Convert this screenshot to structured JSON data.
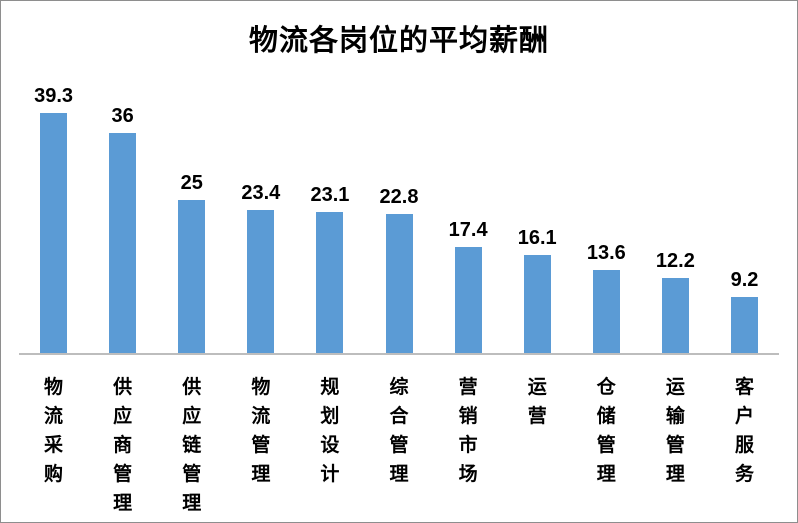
{
  "window": {
    "background": "#ffffff",
    "border_color": "#8e8e8e"
  },
  "chart_data": {
    "type": "bar",
    "title": "物流各岗位的平均薪酬",
    "categories": [
      "物流采购",
      "供应商管理",
      "供应链管理",
      "物流管理",
      "规划设计",
      "综合管理",
      "营销市场",
      "运营",
      "仓储管理",
      "运输管理",
      "客户服务"
    ],
    "values": [
      39.3,
      36,
      25,
      23.4,
      23.1,
      22.8,
      17.4,
      16.1,
      13.6,
      12.2,
      9.2
    ],
    "value_labels": [
      "39.3",
      "36",
      "25",
      "23.4",
      "23.1",
      "22.8",
      "17.4",
      "16.1",
      "13.6",
      "12.2",
      "9.2"
    ],
    "xlabel": "",
    "ylabel": "",
    "bar_color": "#5B9BD5",
    "axis_line_color": "#BDBDBD",
    "text_color": "#000000",
    "data_labels_shown": true,
    "y_axis_shown": false,
    "gridlines": false,
    "legend": "none",
    "category_label_orientation": "vertical-stacked"
  }
}
